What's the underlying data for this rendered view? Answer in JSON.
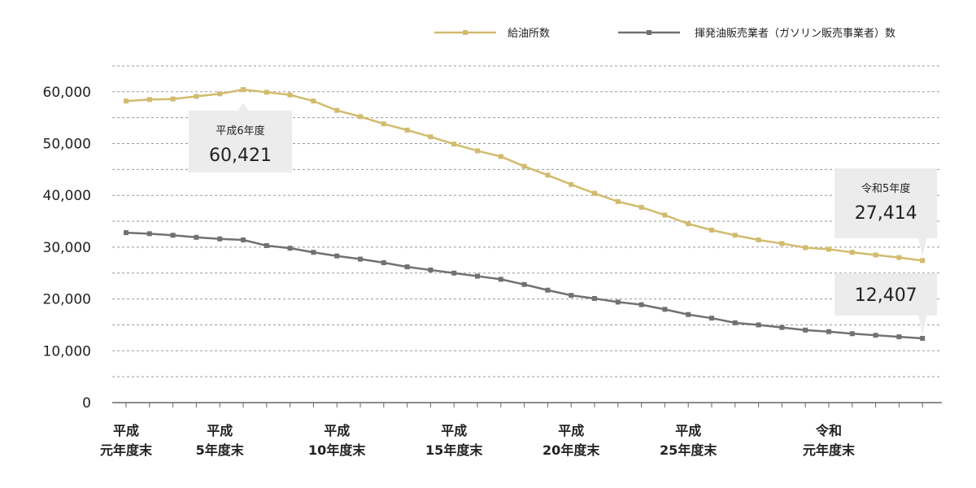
{
  "chart_data": {
    "type": "line",
    "title": "",
    "xlabel": "",
    "ylabel": "",
    "ylim": [
      0,
      65000
    ],
    "yticks": [
      0,
      10000,
      20000,
      30000,
      40000,
      50000,
      60000
    ],
    "ytick_labels": [
      "0",
      "10,000",
      "20,000",
      "30,000",
      "40,000",
      "50,000",
      "60,000"
    ],
    "x": [
      1,
      2,
      3,
      4,
      5,
      6,
      7,
      8,
      9,
      10,
      11,
      12,
      13,
      14,
      15,
      16,
      17,
      18,
      19,
      20,
      21,
      22,
      23,
      24,
      25,
      26,
      27,
      28,
      29,
      30,
      31,
      32,
      33,
      34,
      35
    ],
    "xticks": [
      {
        "x": 1,
        "line1": "平成",
        "line2": "元年度末"
      },
      {
        "x": 5,
        "line1": "平成",
        "line2": "5年度末"
      },
      {
        "x": 10,
        "line1": "平成",
        "line2": "10年度末"
      },
      {
        "x": 15,
        "line1": "平成",
        "line2": "15年度末"
      },
      {
        "x": 20,
        "line1": "平成",
        "line2": "20年度末"
      },
      {
        "x": 25,
        "line1": "平成",
        "line2": "25年度末"
      },
      {
        "x": 31,
        "line1": "令和",
        "line2": "元年度末"
      }
    ],
    "grid": true,
    "legend": "top-right",
    "series": [
      {
        "name": "給油所数",
        "color": "#d2bb6e",
        "values": [
          58200,
          58500,
          58600,
          59100,
          59600,
          60421,
          59900,
          59400,
          58200,
          56400,
          55200,
          53800,
          52600,
          51300,
          49900,
          48600,
          47500,
          45600,
          43900,
          42100,
          40400,
          38800,
          37700,
          36200,
          34500,
          33300,
          32300,
          31400,
          30700,
          29900,
          29600,
          29000,
          28500,
          28000,
          27414
        ]
      },
      {
        "name": "揮発油販売業者（ガソリン販売事業者）数",
        "color": "#717171",
        "values": [
          32800,
          32600,
          32300,
          31900,
          31600,
          31400,
          30300,
          29800,
          29000,
          28300,
          27700,
          27000,
          26200,
          25600,
          25000,
          24400,
          23800,
          22800,
          21700,
          20700,
          20100,
          19400,
          18900,
          18000,
          17000,
          16300,
          15400,
          15000,
          14500,
          14000,
          13700,
          13300,
          13000,
          12700,
          12407
        ]
      }
    ],
    "annotations": [
      {
        "series": 0,
        "x": 6,
        "sub": "平成6年度",
        "main": "60,421"
      },
      {
        "series": 0,
        "x": 35,
        "sub": "令和5年度",
        "main": "27,414"
      },
      {
        "series": 1,
        "x": 35,
        "sub": "",
        "main": "12,407"
      }
    ]
  }
}
